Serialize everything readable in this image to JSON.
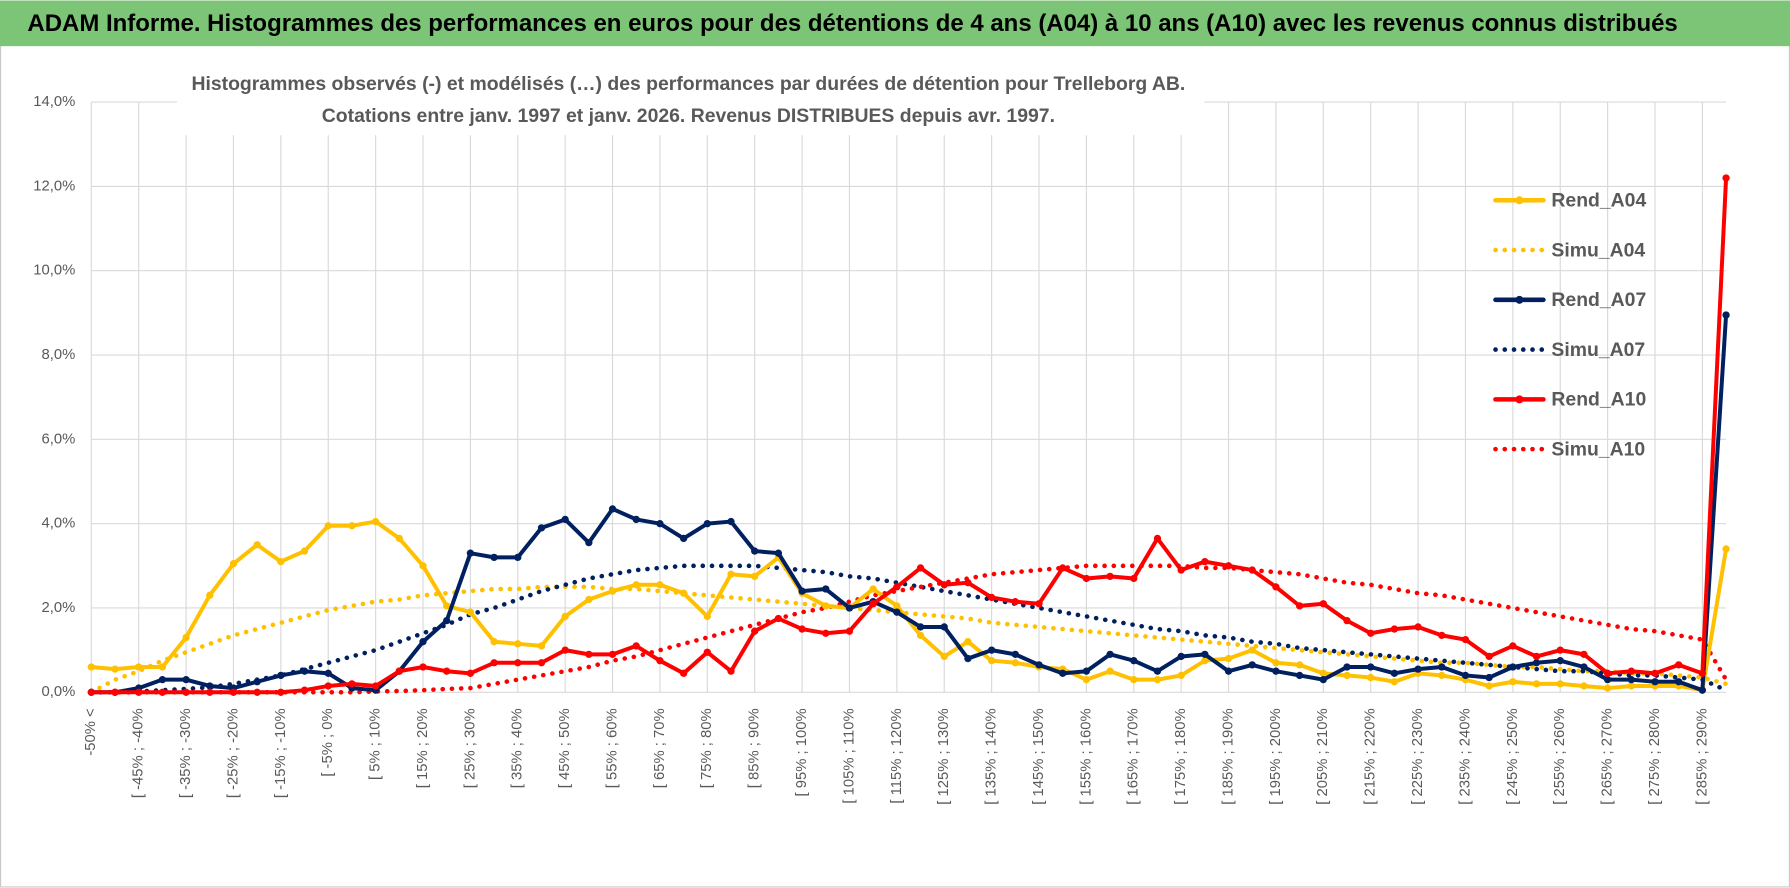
{
  "header": {
    "title": "ADAM Informe. Histogrammes des performances en euros pour des détentions de 4 ans (A04) à 10 ans (A10) avec les revenus connus distribués"
  },
  "chart_data": {
    "type": "line",
    "title": "Histogrammes observés (-) et modélisés (…) des performances par durées de détention pour Trelleborg AB.",
    "subtitle": "Cotations entre janv. 1997 et janv. 2026. Revenus DISTRIBUES depuis avr. 1997.",
    "categories": [
      "-50% <",
      null,
      "[ -45% ; -40%",
      null,
      "[ -35% ; -30%",
      null,
      "[ -25% ; -20%",
      null,
      "[ -15% ; -10%",
      null,
      "[ -5% ; 0%",
      null,
      "[ 5% ; 10%",
      null,
      "[ 15% ; 20%",
      null,
      "[ 25% ; 30%",
      null,
      "[ 35% ; 40%",
      null,
      "[ 45% ; 50%",
      null,
      "[ 55% ; 60%",
      null,
      "[ 65% ; 70%",
      null,
      "[ 75% ; 80%",
      null,
      "[ 85% ; 90%",
      null,
      "[ 95% ; 100%",
      null,
      "[ 105% ; 110%",
      null,
      "[ 115% ; 120%",
      null,
      "[ 125% ; 130%",
      null,
      "[ 135% ; 140%",
      null,
      "[ 145% ; 150%",
      null,
      "[ 155% ; 160%",
      null,
      "[ 165% ; 170%",
      null,
      "[ 175% ; 180%",
      null,
      "[ 185% ; 190%",
      null,
      "[ 195% ; 200%",
      null,
      "[ 205% ; 210%",
      null,
      "[ 215% ; 220%",
      null,
      "[ 225% ; 230%",
      null,
      "[ 235% ; 240%",
      null,
      "[ 245% ; 250%",
      null,
      "[ 255% ; 260%",
      null,
      "[ 265% ; 270%",
      null,
      "[ 275% ; 280%",
      null,
      "[ 285% ; 290%",
      null
    ],
    "series": [
      {
        "name": "Rend_A04",
        "color": "#ffc000",
        "style": "solid",
        "marker": true,
        "values": [
          0.6,
          0.55,
          0.6,
          0.6,
          1.3,
          2.3,
          3.05,
          3.5,
          3.1,
          3.35,
          3.95,
          3.95,
          4.05,
          3.65,
          3.0,
          2.05,
          1.9,
          1.2,
          1.15,
          1.1,
          1.8,
          2.2,
          2.4,
          2.55,
          2.55,
          2.35,
          1.8,
          2.8,
          2.75,
          3.2,
          2.35,
          2.05,
          2.0,
          2.45,
          2.05,
          1.35,
          0.85,
          1.2,
          0.75,
          0.7,
          0.6,
          0.55,
          0.3,
          0.5,
          0.3,
          0.3,
          0.4,
          0.75,
          0.8,
          1.0,
          0.7,
          0.65,
          0.45,
          0.4,
          0.35,
          0.25,
          0.45,
          0.4,
          0.3,
          0.15,
          0.25,
          0.2,
          0.2,
          0.15,
          0.1,
          0.15,
          0.15,
          0.15,
          0.05,
          3.4
        ]
      },
      {
        "name": "Simu_A04",
        "color": "#ffc000",
        "style": "dotted",
        "marker": false,
        "values": [
          0.0,
          0.3,
          0.5,
          0.75,
          0.95,
          1.15,
          1.35,
          1.5,
          1.65,
          1.8,
          1.95,
          2.05,
          2.15,
          2.2,
          2.3,
          2.35,
          2.4,
          2.45,
          2.45,
          2.5,
          2.5,
          2.5,
          2.45,
          2.45,
          2.4,
          2.35,
          2.3,
          2.25,
          2.2,
          2.15,
          2.1,
          2.05,
          2.0,
          1.95,
          1.9,
          1.85,
          1.8,
          1.75,
          1.65,
          1.6,
          1.55,
          1.5,
          1.45,
          1.4,
          1.35,
          1.3,
          1.25,
          1.2,
          1.15,
          1.1,
          1.05,
          1.0,
          0.95,
          0.9,
          0.85,
          0.8,
          0.75,
          0.7,
          0.7,
          0.65,
          0.6,
          0.6,
          0.55,
          0.5,
          0.5,
          0.45,
          0.45,
          0.4,
          0.35,
          0.2
        ]
      },
      {
        "name": "Rend_A07",
        "color": "#002060",
        "style": "solid",
        "marker": true,
        "values": [
          0.0,
          0.0,
          0.1,
          0.3,
          0.3,
          0.15,
          0.1,
          0.25,
          0.4,
          0.5,
          0.45,
          0.1,
          0.05,
          0.5,
          1.2,
          1.7,
          3.3,
          3.2,
          3.2,
          3.9,
          4.1,
          3.55,
          4.35,
          4.1,
          4.0,
          3.65,
          4.0,
          4.05,
          3.35,
          3.3,
          2.4,
          2.45,
          2.0,
          2.15,
          1.9,
          1.55,
          1.55,
          0.8,
          1.0,
          0.9,
          0.65,
          0.45,
          0.5,
          0.9,
          0.75,
          0.5,
          0.85,
          0.9,
          0.5,
          0.65,
          0.5,
          0.4,
          0.3,
          0.6,
          0.6,
          0.45,
          0.55,
          0.6,
          0.4,
          0.35,
          0.6,
          0.7,
          0.75,
          0.6,
          0.3,
          0.3,
          0.25,
          0.25,
          0.05,
          8.95
        ]
      },
      {
        "name": "Simu_A07",
        "color": "#002060",
        "style": "dotted",
        "marker": false,
        "values": [
          0.0,
          0.0,
          0.02,
          0.05,
          0.08,
          0.12,
          0.2,
          0.3,
          0.4,
          0.55,
          0.7,
          0.85,
          1.0,
          1.2,
          1.4,
          1.6,
          1.85,
          2.0,
          2.2,
          2.4,
          2.55,
          2.7,
          2.8,
          2.9,
          2.95,
          3.0,
          3.0,
          3.0,
          3.0,
          2.95,
          2.9,
          2.85,
          2.75,
          2.7,
          2.6,
          2.5,
          2.4,
          2.3,
          2.2,
          2.1,
          2.0,
          1.9,
          1.8,
          1.7,
          1.6,
          1.5,
          1.45,
          1.35,
          1.3,
          1.2,
          1.15,
          1.05,
          1.0,
          0.95,
          0.9,
          0.85,
          0.8,
          0.75,
          0.7,
          0.65,
          0.6,
          0.55,
          0.5,
          0.5,
          0.45,
          0.4,
          0.4,
          0.35,
          0.3,
          0.05
        ]
      },
      {
        "name": "Rend_A10",
        "color": "#ff0000",
        "style": "solid",
        "marker": true,
        "values": [
          0.0,
          0.0,
          0.0,
          0.0,
          0.0,
          0.0,
          0.0,
          0.0,
          0.0,
          0.05,
          0.15,
          0.2,
          0.15,
          0.5,
          0.6,
          0.5,
          0.45,
          0.7,
          0.7,
          0.7,
          1.0,
          0.9,
          0.9,
          1.1,
          0.75,
          0.45,
          0.95,
          0.5,
          1.45,
          1.75,
          1.5,
          1.4,
          1.45,
          2.1,
          2.5,
          2.95,
          2.55,
          2.6,
          2.25,
          2.15,
          2.1,
          2.95,
          2.7,
          2.75,
          2.7,
          3.65,
          2.9,
          3.1,
          3.0,
          2.9,
          2.5,
          2.05,
          2.1,
          1.7,
          1.4,
          1.5,
          1.55,
          1.35,
          1.25,
          0.85,
          1.1,
          0.85,
          1.0,
          0.9,
          0.45,
          0.5,
          0.45,
          0.65,
          0.45,
          12.2
        ]
      },
      {
        "name": "Simu_A10",
        "color": "#ff0000",
        "style": "dotted",
        "marker": false,
        "values": [
          0.0,
          0.0,
          0.0,
          0.0,
          0.0,
          0.0,
          0.0,
          0.0,
          0.0,
          0.0,
          0.0,
          0.0,
          0.02,
          0.03,
          0.05,
          0.08,
          0.1,
          0.2,
          0.3,
          0.4,
          0.5,
          0.6,
          0.75,
          0.85,
          1.0,
          1.15,
          1.3,
          1.45,
          1.6,
          1.75,
          1.9,
          2.0,
          2.15,
          2.3,
          2.4,
          2.5,
          2.6,
          2.7,
          2.8,
          2.85,
          2.9,
          2.95,
          3.0,
          3.0,
          3.0,
          3.0,
          3.0,
          2.95,
          2.95,
          2.9,
          2.85,
          2.8,
          2.7,
          2.6,
          2.55,
          2.45,
          2.35,
          2.3,
          2.2,
          2.1,
          2.0,
          1.9,
          1.8,
          1.7,
          1.6,
          1.5,
          1.45,
          1.35,
          1.25,
          0.3
        ]
      }
    ],
    "ylim": [
      0,
      14
    ],
    "yticks": [
      {
        "value": 0,
        "label": "0,0%"
      },
      {
        "value": 2,
        "label": "2,0%"
      },
      {
        "value": 4,
        "label": "4,0%"
      },
      {
        "value": 6,
        "label": "6,0%"
      },
      {
        "value": 8,
        "label": "8,0%"
      },
      {
        "value": 10,
        "label": "10,0%"
      },
      {
        "value": 12,
        "label": "12,0%"
      },
      {
        "value": 14,
        "label": "14,0%"
      }
    ],
    "grid": true,
    "legend": "right"
  }
}
